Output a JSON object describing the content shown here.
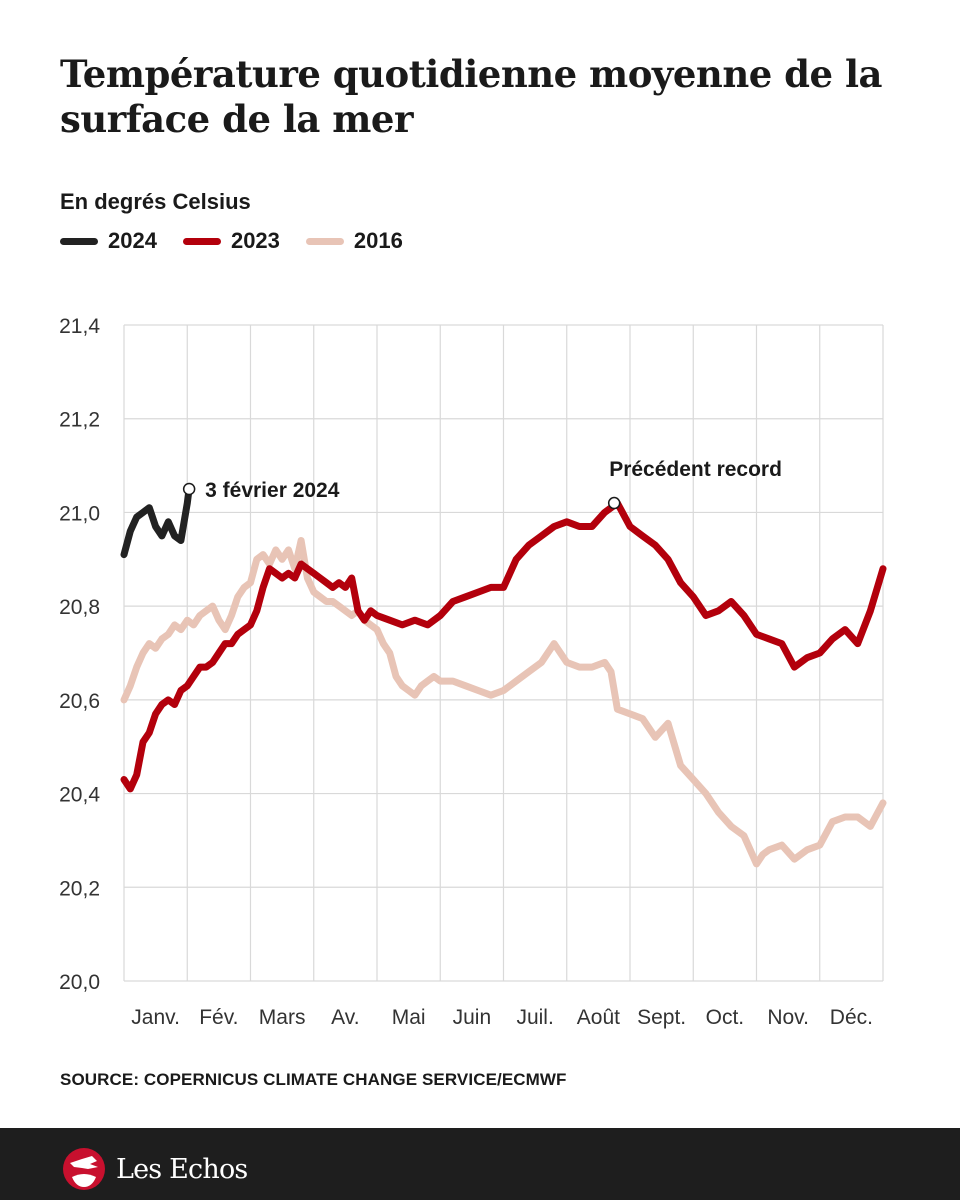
{
  "header": {
    "title": "Température quotidienne moyenne de la surface de la mer",
    "subtitle": "En degrés Celsius"
  },
  "legend": [
    {
      "label": "2024",
      "color": "#222222"
    },
    {
      "label": "2023",
      "color": "#b3000c"
    },
    {
      "label": "2016",
      "color": "#e8c4b6"
    }
  ],
  "source": "SOURCE: COPERNICUS CLIMATE CHANGE SERVICE/ECMWF",
  "footer": {
    "brand": "Les Echos",
    "logo_icon": "les-echos-logo-icon"
  },
  "chart_data": {
    "type": "line",
    "title": "Température quotidienne moyenne de la surface de la mer",
    "ylabel": "En degrés Celsius",
    "xlabel": "",
    "ylim": [
      20.0,
      21.4
    ],
    "yticks": [
      20.0,
      20.2,
      20.4,
      20.6,
      20.8,
      21.0,
      21.2,
      21.4
    ],
    "ytick_labels": [
      "20,0",
      "20,2",
      "20,4",
      "20,6",
      "20,8",
      "21,0",
      "21,2",
      "21,4"
    ],
    "x_unit": "month (fractional, 0 = 1 Jan, 12 = 31 Dec)",
    "xlim": [
      0,
      12
    ],
    "categories": [
      "Janv.",
      "Fév.",
      "Mars",
      "Av.",
      "Mai",
      "Juin",
      "Juil.",
      "Août",
      "Sept.",
      "Oct.",
      "Nov.",
      "Déc."
    ],
    "grid": true,
    "legend_position": "top-left",
    "series": [
      {
        "name": "2016",
        "color": "#e8c4b6",
        "x": [
          0,
          0.1,
          0.2,
          0.3,
          0.4,
          0.5,
          0.6,
          0.7,
          0.8,
          0.9,
          1.0,
          1.1,
          1.2,
          1.3,
          1.4,
          1.5,
          1.6,
          1.7,
          1.8,
          1.9,
          2.0,
          2.1,
          2.2,
          2.3,
          2.4,
          2.5,
          2.6,
          2.7,
          2.8,
          2.9,
          3.0,
          3.1,
          3.2,
          3.3,
          3.4,
          3.5,
          3.6,
          3.7,
          3.8,
          3.9,
          4.0,
          4.1,
          4.2,
          4.3,
          4.4,
          4.5,
          4.6,
          4.7,
          4.8,
          4.9,
          5.0,
          5.2,
          5.4,
          5.6,
          5.8,
          6.0,
          6.2,
          6.4,
          6.6,
          6.8,
          7.0,
          7.2,
          7.4,
          7.6,
          7.7,
          7.8,
          8.0,
          8.2,
          8.4,
          8.6,
          8.8,
          9.0,
          9.2,
          9.4,
          9.6,
          9.8,
          10.0,
          10.1,
          10.2,
          10.4,
          10.6,
          10.8,
          11.0,
          11.2,
          11.4,
          11.6,
          11.8,
          12.0
        ],
        "values": [
          20.6,
          20.63,
          20.67,
          20.7,
          20.72,
          20.71,
          20.73,
          20.74,
          20.76,
          20.75,
          20.77,
          20.76,
          20.78,
          20.79,
          20.8,
          20.77,
          20.75,
          20.78,
          20.82,
          20.84,
          20.85,
          20.9,
          20.91,
          20.89,
          20.92,
          20.9,
          20.92,
          20.88,
          20.94,
          20.86,
          20.83,
          20.82,
          20.81,
          20.81,
          20.8,
          20.79,
          20.78,
          20.79,
          20.77,
          20.76,
          20.75,
          20.72,
          20.7,
          20.65,
          20.63,
          20.62,
          20.61,
          20.63,
          20.64,
          20.65,
          20.64,
          20.64,
          20.63,
          20.62,
          20.61,
          20.62,
          20.64,
          20.66,
          20.68,
          20.72,
          20.68,
          20.67,
          20.67,
          20.68,
          20.66,
          20.58,
          20.57,
          20.56,
          20.52,
          20.55,
          20.46,
          20.43,
          20.4,
          20.36,
          20.33,
          20.31,
          20.25,
          20.27,
          20.28,
          20.29,
          20.26,
          20.28,
          20.29,
          20.34,
          20.35,
          20.35,
          20.33,
          20.38
        ]
      },
      {
        "name": "2023",
        "color": "#b3000c",
        "x": [
          0,
          0.1,
          0.2,
          0.3,
          0.4,
          0.5,
          0.6,
          0.7,
          0.8,
          0.9,
          1.0,
          1.1,
          1.2,
          1.3,
          1.4,
          1.5,
          1.6,
          1.7,
          1.8,
          1.9,
          2.0,
          2.1,
          2.2,
          2.3,
          2.4,
          2.5,
          2.6,
          2.7,
          2.8,
          2.9,
          3.0,
          3.1,
          3.2,
          3.3,
          3.4,
          3.5,
          3.6,
          3.7,
          3.8,
          3.9,
          4.0,
          4.2,
          4.4,
          4.6,
          4.8,
          5.0,
          5.2,
          5.4,
          5.6,
          5.8,
          6.0,
          6.2,
          6.4,
          6.6,
          6.8,
          7.0,
          7.2,
          7.4,
          7.6,
          7.8,
          8.0,
          8.2,
          8.4,
          8.6,
          8.8,
          9.0,
          9.2,
          9.4,
          9.6,
          9.8,
          10.0,
          10.2,
          10.4,
          10.6,
          10.8,
          11.0,
          11.2,
          11.4,
          11.6,
          11.8,
          12.0
        ],
        "values": [
          20.43,
          20.41,
          20.44,
          20.51,
          20.53,
          20.57,
          20.59,
          20.6,
          20.59,
          20.62,
          20.63,
          20.65,
          20.67,
          20.67,
          20.68,
          20.7,
          20.72,
          20.72,
          20.74,
          20.75,
          20.76,
          20.79,
          20.84,
          20.88,
          20.87,
          20.86,
          20.87,
          20.86,
          20.89,
          20.88,
          20.87,
          20.86,
          20.85,
          20.84,
          20.85,
          20.84,
          20.86,
          20.79,
          20.77,
          20.79,
          20.78,
          20.77,
          20.76,
          20.77,
          20.76,
          20.78,
          20.81,
          20.82,
          20.83,
          20.84,
          20.84,
          20.9,
          20.93,
          20.95,
          20.97,
          20.98,
          20.97,
          20.97,
          21.0,
          21.02,
          20.97,
          20.95,
          20.93,
          20.9,
          20.85,
          20.82,
          20.78,
          20.79,
          20.81,
          20.78,
          20.74,
          20.73,
          20.72,
          20.67,
          20.69,
          20.7,
          20.73,
          20.75,
          20.72,
          20.79,
          20.88
        ]
      },
      {
        "name": "2024",
        "color": "#222222",
        "x": [
          0,
          0.1,
          0.2,
          0.3,
          0.4,
          0.5,
          0.6,
          0.7,
          0.8,
          0.9,
          1.0,
          1.03
        ],
        "values": [
          20.91,
          20.96,
          20.99,
          21.0,
          21.01,
          20.97,
          20.95,
          20.98,
          20.95,
          20.94,
          21.02,
          21.05
        ]
      }
    ],
    "annotations": [
      {
        "label": "3 février 2024",
        "series": "2024",
        "x": 1.03,
        "value": 21.05
      },
      {
        "label": "Précédent record",
        "series": "2023",
        "x": 7.75,
        "value": 21.02
      }
    ]
  }
}
